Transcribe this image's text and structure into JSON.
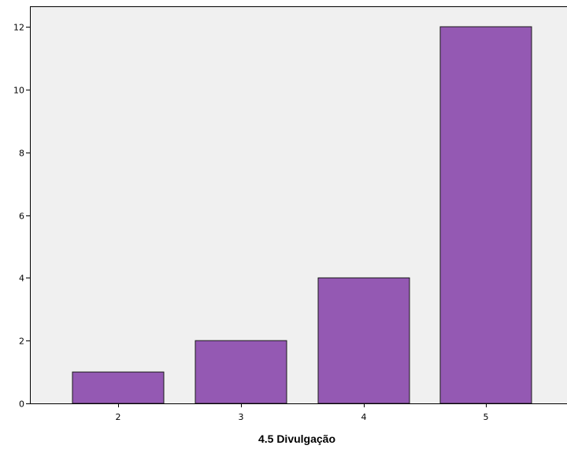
{
  "colors": {
    "plot_background": "#f0f0f0",
    "bar_fill": "#9459b3",
    "bar_stroke": "#1a1a1a",
    "axis": "#000000"
  },
  "chart_data": {
    "type": "bar",
    "title": "",
    "xlabel": "4.5 Divulgação",
    "ylabel": "",
    "categories": [
      "2",
      "3",
      "4",
      "5"
    ],
    "values": [
      1,
      2,
      4,
      12
    ],
    "ylim": [
      0,
      12.5
    ],
    "yticks": [
      0,
      2,
      4,
      6,
      8,
      10,
      12
    ],
    "grid": false,
    "legend": "none"
  }
}
